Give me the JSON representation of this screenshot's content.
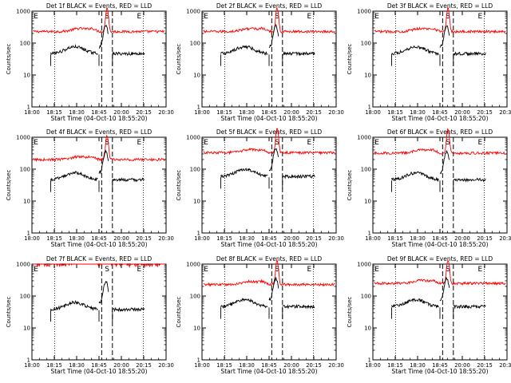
{
  "chart_data": {
    "type": "line",
    "ylabel": "Counts/sec",
    "xlabel_prefix": "Start Time",
    "start_time": "04-Oct-10 18:55:20",
    "y_scale": "log",
    "ylim": [
      1,
      1000
    ],
    "y_tick_labels": [
      "1",
      "10",
      "100",
      "1000"
    ],
    "x_tick_labels": [
      "18:00",
      "18:15",
      "18:30",
      "18:45",
      "20:00",
      "20:15",
      "20:30"
    ],
    "marker_labels": [
      "E",
      "S",
      "E"
    ],
    "colors": {
      "events": "#000000",
      "lld": "#ff0000"
    },
    "panels": [
      {
        "title": "Det 1f BLACK = Events, RED = LLD",
        "x_label": "Start Time (04-Oct-10 18:55:20)",
        "red_level": 230,
        "black_level": 55
      },
      {
        "title": "Det 2f BLACK = Events, RED = LLD",
        "x_label": "Start Time (04-Oct-10 18:55:20)",
        "red_level": 230,
        "black_level": 55
      },
      {
        "title": "Det 3f BLACK = Events, RED = LLD",
        "x_label": "Start Time (04-Oct-10 18:55:20)",
        "red_level": 230,
        "black_level": 55
      },
      {
        "title": "Det 4f BLACK = Events, RED = LLD",
        "x_label": "Start Time (04-Oct-10 18:55:20)",
        "red_level": 200,
        "black_level": 55
      },
      {
        "title": "Det 5f BLACK = Events, RED = LLD",
        "x_label": "Start Time (04-Oct-10 18:55:20)",
        "red_level": 330,
        "black_level": 70
      },
      {
        "title": "Det 6f BLACK = Events, RED = LLD",
        "x_label": "Start Time (04-Oct-10 18:55:20)",
        "red_level": 320,
        "black_level": 55
      },
      {
        "title": "Det 7f BLACK = Events, RED = LLD",
        "x_label": "Start Time (04-Oct-10 18:55:20)",
        "red_level": 1000,
        "black_level": 45
      },
      {
        "title": "Det 8f BLACK = Events, RED = LLD",
        "x_label": "Start Time (04-Oct-10 18:55:20)",
        "red_level": 230,
        "black_level": 55
      },
      {
        "title": "Det 9f BLACK = Events, RED = LLD",
        "x_label": "Start Time (04-Oct-10 18:55:20)",
        "red_level": 250,
        "black_level": 55
      }
    ]
  }
}
